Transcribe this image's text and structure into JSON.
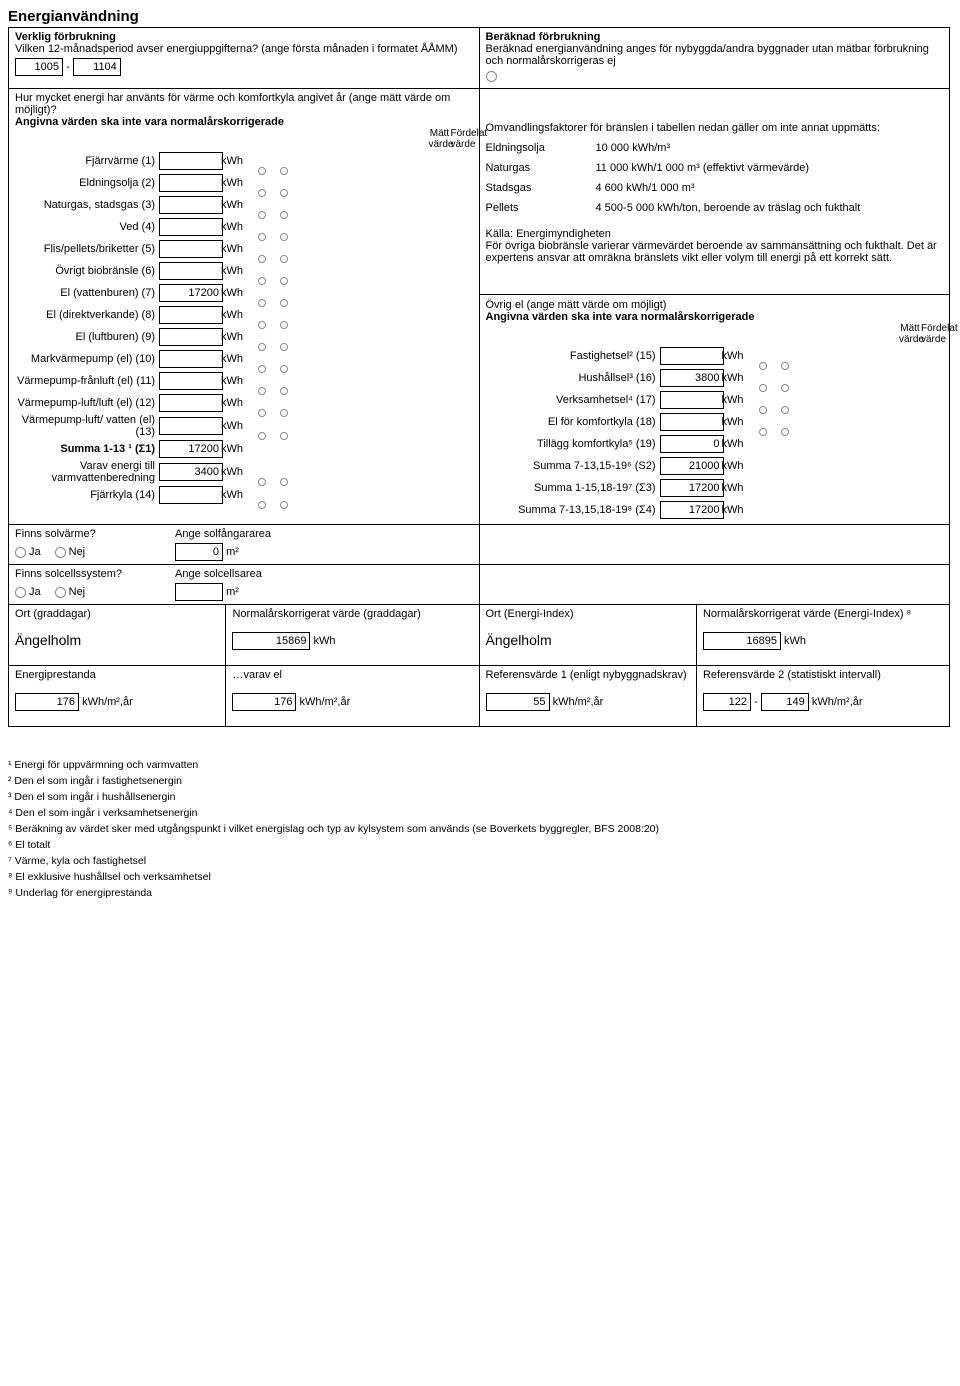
{
  "title": "Energianvändning",
  "left": {
    "head": "Verklig förbrukning",
    "q1": "Vilken 12-månadsperiod avser energiuppgifterna? (ange första månaden i formatet ÅÅMM)",
    "period_from": "1005",
    "period_dash": "-",
    "period_to": "1104",
    "q2a": "Hur mycket energi har använts för värme och komfortkyla angivet år (ange mätt värde om möjligt)?",
    "q2b": "Angivna värden ska inte vara normalårskorrigerade",
    "hdr_matt": "Mätt värde",
    "hdr_ford": "Fördelat värde",
    "rows": [
      {
        "label": "Fjärrvärme (1)",
        "val": "",
        "unit": "kWh"
      },
      {
        "label": "Eldningsolja (2)",
        "val": "",
        "unit": "kWh"
      },
      {
        "label": "Naturgas, stadsgas (3)",
        "val": "",
        "unit": "kWh"
      },
      {
        "label": "Ved (4)",
        "val": "",
        "unit": "kWh"
      },
      {
        "label": "Flis/pellets/briketter (5)",
        "val": "",
        "unit": "kWh"
      },
      {
        "label": "Övrigt biobränsle (6)",
        "val": "",
        "unit": "kWh"
      },
      {
        "label": "El (vattenburen) (7)",
        "val": "17200",
        "unit": "kWh"
      },
      {
        "label": "El (direktverkande) (8)",
        "val": "",
        "unit": "kWh"
      },
      {
        "label": "El (luftburen) (9)",
        "val": "",
        "unit": "kWh"
      },
      {
        "label": "Markvärmepump (el) (10)",
        "val": "",
        "unit": "kWh"
      },
      {
        "label": "Värmepump-frånluft (el) (11)",
        "val": "",
        "unit": "kWh"
      },
      {
        "label": "Värmepump-luft/luft (el) (12)",
        "val": "",
        "unit": "kWh"
      },
      {
        "label": "Värmepump-luft/ vatten (el) (13)",
        "val": "",
        "unit": "kWh"
      }
    ],
    "sum_row": {
      "label": "Summa 1-13 ¹ (Σ1)",
      "val": "17200",
      "unit": "kWh"
    },
    "vv_row": {
      "label": "Varav energi till varmvattenberedning",
      "val": "3400",
      "unit": "kWh"
    },
    "fk_row": {
      "label": "Fjärrkyla (14)",
      "val": "",
      "unit": "kWh"
    },
    "solv_q": "Finns solvärme?",
    "solv_area_lbl": "Ange solfångararea",
    "solv_area_val": "0",
    "area_unit": "m²",
    "solc_q": "Finns solcellssystem?",
    "solc_area_lbl": "Ange solcellsarea",
    "solc_area_val": "",
    "ja": "Ja",
    "nej": "Nej"
  },
  "right": {
    "head": "Beräknad förbrukning",
    "desc": "Beräknad energianvändning anges för nybyggda/andra byggnader utan mätbar förbrukning och normalårskorrigeras ej",
    "conv_intro": "Omvandlingsfaktorer för bränslen i tabellen nedan gäller om inte annat uppmätts:",
    "conv": [
      {
        "l": "Eldningsolja",
        "r": "10 000 kWh/m³"
      },
      {
        "l": "Naturgas",
        "r": "11 000 kWh/1 000 m³ (effektivt värmevärde)"
      },
      {
        "l": "Stadsgas",
        "r": "4 600 kWh/1 000 m³"
      },
      {
        "l": "Pellets",
        "r": "4 500-5 000 kWh/ton, beroende av träslag och fukthalt"
      }
    ],
    "source": "Källa: Energimyndigheten",
    "source2": "För övriga biobränsle varierar värmevärdet beroende av sammansättning och fukthalt. Det är expertens ansvar att omräkna bränslets vikt eller volym till energi på ett korrekt sätt.",
    "ovrig_head": "Övrig el (ange mätt värde om möjligt)",
    "ovrig_sub": "Angivna värden ska inte vara normalårskorrigerade",
    "hdr_matt": "Mätt värde",
    "hdr_ford": "Fördelat värde",
    "rows": [
      {
        "label": "Fastighetsel² (15)",
        "val": "",
        "unit": "kWh",
        "ticks": true
      },
      {
        "label": "Hushållsel³ (16)",
        "val": "3800",
        "unit": "kWh",
        "ticks": true
      },
      {
        "label": "Verksamhetsel⁴ (17)",
        "val": "",
        "unit": "kWh",
        "ticks": true
      },
      {
        "label": "El för komfortkyla (18)",
        "val": "",
        "unit": "kWh",
        "ticks": true
      },
      {
        "label": "Tillägg komfortkyla⁵ (19)",
        "val": "0",
        "unit": "kWh",
        "ticks": false
      },
      {
        "label": "Summa 7-13,15-19⁶ (S2)",
        "val": "21000",
        "unit": "kWh",
        "ticks": false
      },
      {
        "label": "Summa 1-15,18-19⁷ (Σ3)",
        "val": "17200",
        "unit": "kWh",
        "ticks": false
      },
      {
        "label": "Summa 7-13,15,18-19⁸ (Σ4)",
        "val": "17200",
        "unit": "kWh",
        "ticks": false
      }
    ]
  },
  "bottom1": {
    "c1_lbl": "Ort (graddagar)",
    "c1_val": "Ängelholm",
    "c2_lbl": "Normalårskorrigerat värde (graddagar)",
    "c2_val": "15869",
    "c2_unit": "kWh",
    "c3_lbl": "Ort (Energi-Index)",
    "c3_val": "Ängelholm",
    "c4_lbl": "Normalårskorrigerat värde (Energi-Index) ⁸",
    "c4_val": "16895",
    "c4_unit": "kWh"
  },
  "bottom2": {
    "c1_lbl": "Energiprestanda",
    "c1_val": "176",
    "c1_unit": "kWh/m²,år",
    "c2_lbl": "…varav el",
    "c2_val": "176",
    "c2_unit": "kWh/m²,år",
    "c3_lbl": "Referensvärde 1 (enligt nybyggnadskrav)",
    "c3_val": "55",
    "c3_unit": "kWh/m²,år",
    "c4_lbl": "Referensvärde 2 (statistiskt intervall)",
    "c4_from": "122",
    "c4_dash": "-",
    "c4_to": "149",
    "c4_unit": "kWh/m²,år"
  },
  "footnotes": [
    "¹ Energi för uppvärmning och varmvatten",
    "² Den el som ingår i fastighetsenergin",
    "³ Den el som ingår i hushållsenergin",
    "⁴ Den el som ingår i verksamhetsenergin",
    "⁵ Beräkning av värdet sker med utgångspunkt i vilket energislag och typ av kylsystem som används (se Boverkets byggregler, BFS 2008:20)",
    "⁶ El totalt",
    "⁷ Värme, kyla och fastighetsel",
    "⁸ El exklusive hushållsel och verksamhetsel",
    "⁹ Underlag för energiprestanda"
  ]
}
